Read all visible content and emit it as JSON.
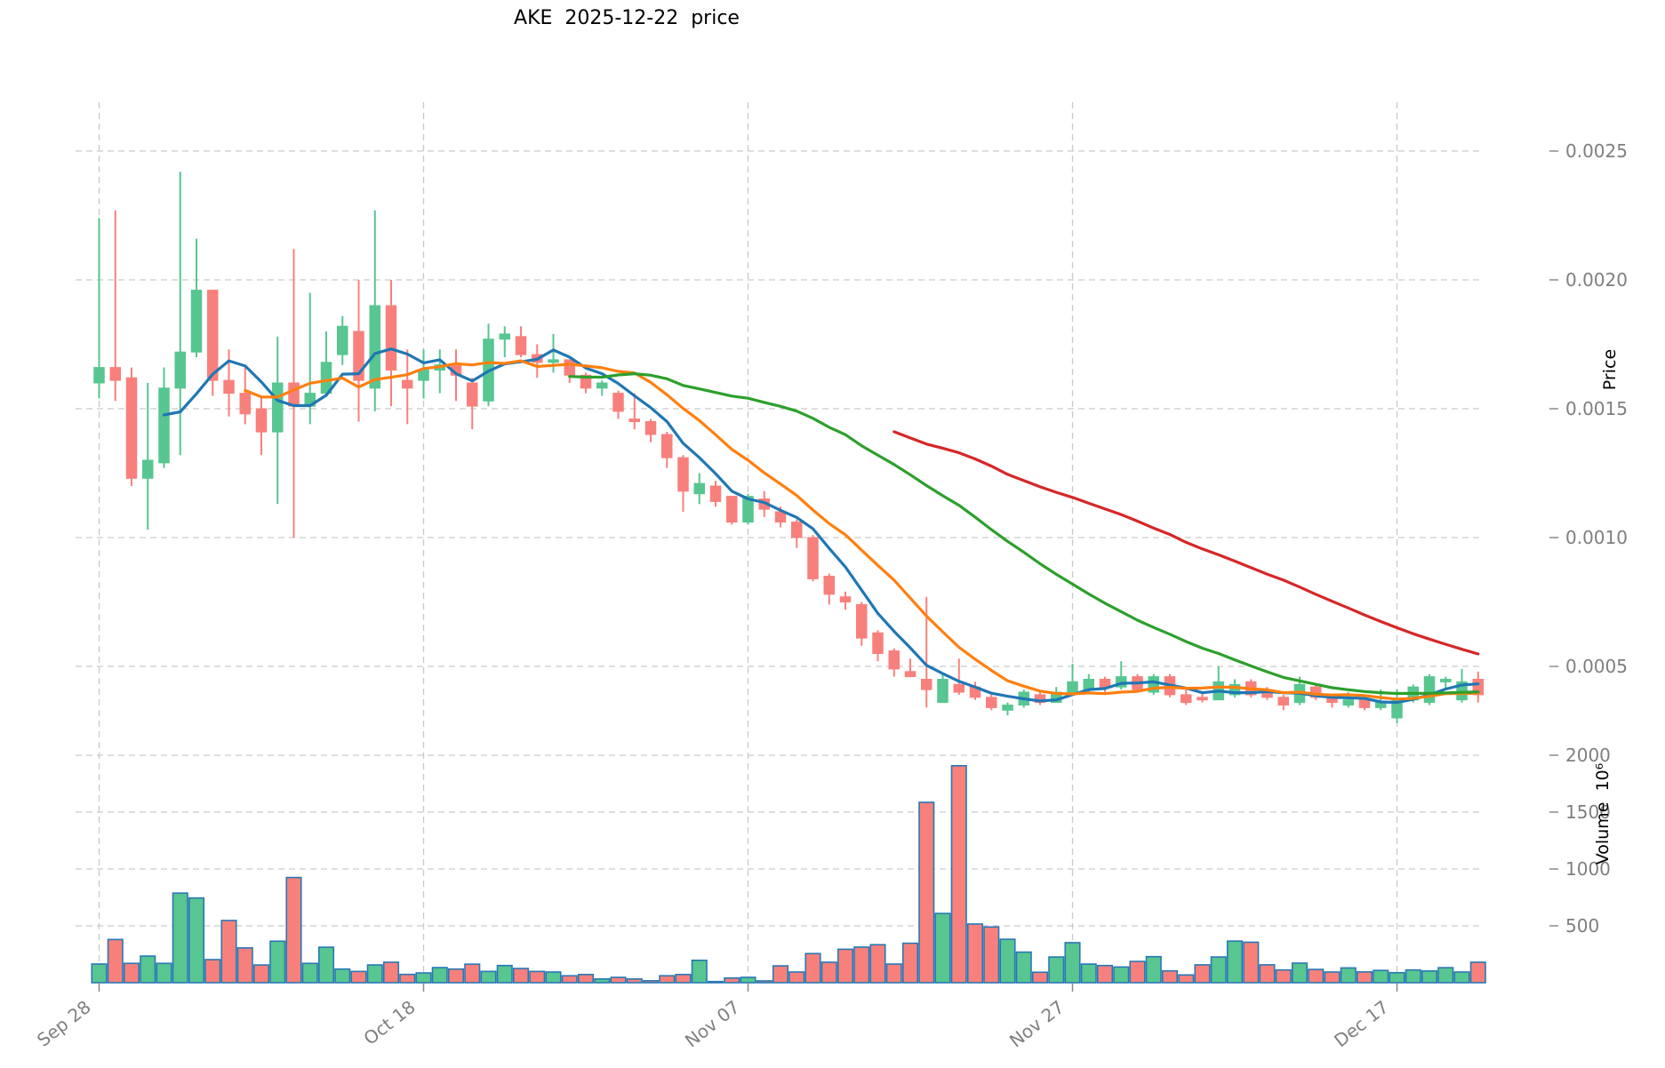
{
  "title": "AKE  2025-12-22  price",
  "axes": {
    "price_label": "Price",
    "volume_label": "Volume  10⁶",
    "price_ticks": [
      {
        "value": 0.0025,
        "label": "0.0025"
      },
      {
        "value": 0.002,
        "label": "0.0020"
      },
      {
        "value": 0.0015,
        "label": "0.0015"
      },
      {
        "value": 0.001,
        "label": "0.0010"
      },
      {
        "value": 0.0005,
        "label": "0.0005"
      }
    ],
    "volume_ticks": [
      {
        "value": 2000,
        "label": "2000"
      },
      {
        "value": 1500,
        "label": "1500"
      },
      {
        "value": 1000,
        "label": "1000"
      },
      {
        "value": 500,
        "label": "500"
      }
    ],
    "x_ticks": [
      {
        "index": 0,
        "label": "Sep 28"
      },
      {
        "index": 20,
        "label": "Oct 18"
      },
      {
        "index": 40,
        "label": "Nov 07"
      },
      {
        "index": 60,
        "label": "Nov 27"
      },
      {
        "index": 80,
        "label": "Dec 17"
      }
    ]
  },
  "colors": {
    "up": "#57c690",
    "down": "#f8807c",
    "volume_edge": "#2878b5",
    "grid": "#c9c9c9",
    "tick_text": "#7f7f7f",
    "ma_blue": "#1f77b4",
    "ma_orange": "#ff7f0e",
    "ma_green": "#2ca02c",
    "ma_red": "#d62728"
  },
  "chart_data": {
    "type": "candlestick",
    "title": "AKE  2025-12-22  price",
    "ylabel": "Price",
    "ylabel2": "Volume  10⁶",
    "price_ylim": [
      0.00025,
      0.00262
    ],
    "volume_ylim": [
      0,
      2300
    ],
    "grid": true,
    "moving_averages": [
      {
        "name": "MA5",
        "window": 5,
        "color": "#1f77b4"
      },
      {
        "name": "MA10",
        "window": 10,
        "color": "#ff7f0e"
      },
      {
        "name": "MA30",
        "window": 30,
        "color": "#2ca02c"
      },
      {
        "name": "MA50",
        "window": 50,
        "color": "#d62728"
      }
    ],
    "columns": [
      "open",
      "high",
      "low",
      "close",
      "volume_millions"
    ],
    "candles": [
      [
        0.0016,
        0.00224,
        0.00154,
        0.00166,
        164
      ],
      [
        0.00166,
        0.00227,
        0.00153,
        0.00161,
        380
      ],
      [
        0.00162,
        0.00166,
        0.0012,
        0.00123,
        170
      ],
      [
        0.00123,
        0.0016,
        0.00103,
        0.0013,
        234
      ],
      [
        0.00129,
        0.00166,
        0.00127,
        0.00158,
        170
      ],
      [
        0.00158,
        0.00242,
        0.00132,
        0.00172,
        788
      ],
      [
        0.00172,
        0.00216,
        0.0017,
        0.00196,
        745
      ],
      [
        0.00196,
        0.00196,
        0.00155,
        0.00161,
        203
      ],
      [
        0.00161,
        0.00173,
        0.00147,
        0.00156,
        547
      ],
      [
        0.00156,
        0.00166,
        0.00144,
        0.00148,
        306
      ],
      [
        0.0015,
        0.00155,
        0.00132,
        0.00141,
        156
      ],
      [
        0.00141,
        0.00178,
        0.00113,
        0.0016,
        365
      ],
      [
        0.0016,
        0.00212,
        0.001,
        0.00151,
        925
      ],
      [
        0.00151,
        0.00195,
        0.00144,
        0.00156,
        170
      ],
      [
        0.00156,
        0.0018,
        0.00155,
        0.00168,
        312
      ],
      [
        0.00171,
        0.00186,
        0.00167,
        0.00182,
        120
      ],
      [
        0.0018,
        0.002,
        0.00145,
        0.00161,
        99
      ],
      [
        0.00158,
        0.00227,
        0.00149,
        0.0019,
        156
      ],
      [
        0.0019,
        0.002,
        0.00151,
        0.00165,
        180
      ],
      [
        0.00161,
        0.00173,
        0.00144,
        0.00158,
        73
      ],
      [
        0.00161,
        0.00173,
        0.00154,
        0.00165,
        86
      ],
      [
        0.00165,
        0.00173,
        0.00156,
        0.00167,
        133
      ],
      [
        0.00167,
        0.00173,
        0.00153,
        0.00163,
        120
      ],
      [
        0.0016,
        0.00162,
        0.00142,
        0.00151,
        163
      ],
      [
        0.00153,
        0.00183,
        0.00151,
        0.00177,
        99
      ],
      [
        0.00177,
        0.00182,
        0.0017,
        0.00179,
        151
      ],
      [
        0.00178,
        0.00182,
        0.0017,
        0.00171,
        125
      ],
      [
        0.00171,
        0.00175,
        0.00162,
        0.00168,
        99
      ],
      [
        0.00168,
        0.00179,
        0.00164,
        0.00169,
        94
      ],
      [
        0.00169,
        0.00169,
        0.0016,
        0.00163,
        61
      ],
      [
        0.00163,
        0.00164,
        0.00156,
        0.00158,
        72
      ],
      [
        0.00158,
        0.00161,
        0.00155,
        0.0016,
        33
      ],
      [
        0.00156,
        0.00157,
        0.00146,
        0.00149,
        47
      ],
      [
        0.00146,
        0.00156,
        0.00142,
        0.00145,
        33
      ],
      [
        0.00145,
        0.00146,
        0.00137,
        0.0014,
        17
      ],
      [
        0.0014,
        0.00141,
        0.00127,
        0.00131,
        61
      ],
      [
        0.00131,
        0.00132,
        0.0011,
        0.00118,
        72
      ],
      [
        0.00117,
        0.00125,
        0.00113,
        0.00121,
        197
      ],
      [
        0.0012,
        0.00122,
        0.00112,
        0.00114,
        10
      ],
      [
        0.00116,
        0.00116,
        0.00105,
        0.00106,
        41
      ],
      [
        0.00106,
        0.00117,
        0.00105,
        0.00116,
        47
      ],
      [
        0.00115,
        0.00118,
        0.00108,
        0.00111,
        16
      ],
      [
        0.0011,
        0.00112,
        0.00104,
        0.00106,
        148
      ],
      [
        0.00106,
        0.00107,
        0.00096,
        0.001,
        94
      ],
      [
        0.001,
        0.00101,
        0.00083,
        0.00084,
        256
      ],
      [
        0.00085,
        0.00086,
        0.00074,
        0.00078,
        180
      ],
      [
        0.00077,
        0.00079,
        0.00072,
        0.00075,
        294
      ],
      [
        0.00074,
        0.00075,
        0.00058,
        0.00061,
        313
      ],
      [
        0.00063,
        0.00064,
        0.00052,
        0.00055,
        334
      ],
      [
        0.00056,
        0.00057,
        0.00046,
        0.00049,
        164
      ],
      [
        0.00048,
        0.00053,
        0.00046,
        0.00046,
        347
      ],
      [
        0.00045,
        0.00077,
        0.00034,
        0.00041,
        1586
      ],
      [
        0.00036,
        0.00047,
        0.00036,
        0.00045,
        609
      ],
      [
        0.00043,
        0.00053,
        0.00039,
        0.0004,
        1908
      ],
      [
        0.00042,
        0.00044,
        0.00037,
        0.00038,
        516
      ],
      [
        0.00038,
        0.00039,
        0.00033,
        0.00034,
        490
      ],
      [
        0.00033,
        0.00036,
        0.00031,
        0.00035,
        382
      ],
      [
        0.00035,
        0.00041,
        0.00034,
        0.0004,
        269
      ],
      [
        0.00039,
        0.0004,
        0.00035,
        0.00036,
        92
      ],
      [
        0.00036,
        0.00042,
        0.00036,
        0.0004,
        226
      ],
      [
        0.0004,
        0.00051,
        0.00039,
        0.00044,
        352
      ],
      [
        0.00041,
        0.00047,
        0.0004,
        0.00045,
        164
      ],
      [
        0.00045,
        0.00046,
        0.0004,
        0.00042,
        151
      ],
      [
        0.00042,
        0.00052,
        0.00041,
        0.00046,
        138
      ],
      [
        0.00046,
        0.00047,
        0.0004,
        0.00041,
        187
      ],
      [
        0.0004,
        0.00047,
        0.00039,
        0.00046,
        229
      ],
      [
        0.00046,
        0.00047,
        0.00038,
        0.00039,
        104
      ],
      [
        0.00039,
        0.00041,
        0.00035,
        0.00036,
        68
      ],
      [
        0.00038,
        0.0004,
        0.00036,
        0.00037,
        157
      ],
      [
        0.00037,
        0.0005,
        0.00037,
        0.00044,
        226
      ],
      [
        0.00039,
        0.00045,
        0.00038,
        0.00043,
        366
      ],
      [
        0.00044,
        0.00045,
        0.00038,
        0.00039,
        356
      ],
      [
        0.0004,
        0.00042,
        0.00037,
        0.00038,
        157
      ],
      [
        0.00038,
        0.00039,
        0.00033,
        0.00035,
        112
      ],
      [
        0.00036,
        0.00046,
        0.00035,
        0.00043,
        172
      ],
      [
        0.00042,
        0.00043,
        0.00037,
        0.00038,
        117
      ],
      [
        0.00038,
        0.00039,
        0.00034,
        0.00036,
        94
      ],
      [
        0.00035,
        0.0004,
        0.00034,
        0.00037,
        130
      ],
      [
        0.00037,
        0.00038,
        0.00033,
        0.00034,
        95
      ],
      [
        0.00034,
        0.00041,
        0.00033,
        0.00036,
        108
      ],
      [
        0.0003,
        0.00041,
        0.00028,
        0.00037,
        88
      ],
      [
        0.00037,
        0.00043,
        0.00036,
        0.00042,
        112
      ],
      [
        0.00036,
        0.00047,
        0.00035,
        0.00046,
        103
      ],
      [
        0.00044,
        0.00046,
        0.00041,
        0.00045,
        132
      ],
      [
        0.00037,
        0.00049,
        0.00036,
        0.00044,
        94
      ],
      [
        0.00045,
        0.00048,
        0.00036,
        0.00039,
        180
      ]
    ]
  }
}
